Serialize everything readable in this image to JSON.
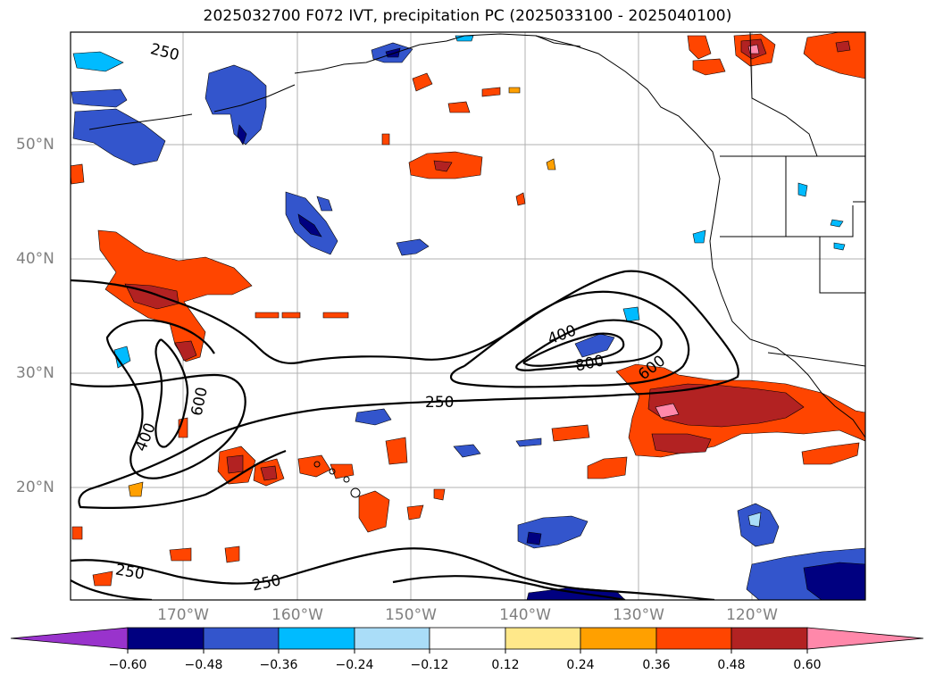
{
  "title": "2025032700 F072 IVT, precipitation PC (2025033100 - 2025040100)",
  "lat_labels": [
    "50°N",
    "40°N",
    "30°N",
    "20°N"
  ],
  "lon_labels": [
    "170°W",
    "160°W",
    "150°W",
    "140°W",
    "130°W",
    "120°W"
  ],
  "contour_labels": {
    "c250_north": "250",
    "c250_mid": "250",
    "c250_south_a": "250",
    "c250_south_b": "250",
    "c400_west": "400",
    "c600_west": "600",
    "c400_east": "400",
    "c600_east": "600",
    "c800_east": "800"
  },
  "colorbar": {
    "tick_labels": [
      "−0.60",
      "−0.48",
      "−0.36",
      "−0.24",
      "−0.12",
      "0.12",
      "0.24",
      "0.36",
      "0.48",
      "0.60"
    ],
    "colors": [
      "#9933cc",
      "#000080",
      "#3355cc",
      "#00bbff",
      "#aaddf8",
      "#ffffff",
      "#ffe88a",
      "#ffa000",
      "#ff4500",
      "#b22222",
      "#ff88aa"
    ]
  },
  "colors": {
    "gridline": "#b0b0b0",
    "tick_label": "#808080",
    "contour": "#000000"
  }
}
